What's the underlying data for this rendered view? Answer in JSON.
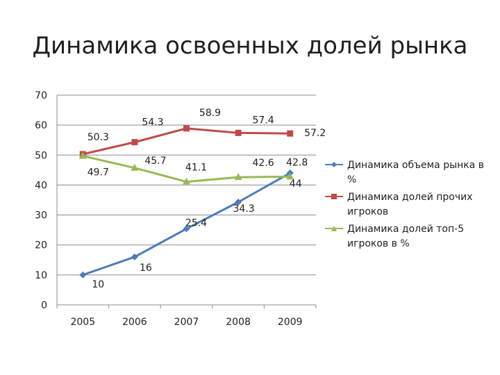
{
  "chart_data": {
    "type": "line",
    "title": "Динамика освоенных долей рынка",
    "categories": [
      "2005",
      "2006",
      "2007",
      "2008",
      "2009"
    ],
    "ylim": [
      0,
      70
    ],
    "yticks": [
      0,
      10,
      20,
      30,
      40,
      50,
      60,
      70
    ],
    "grid": true,
    "legend_position": "right",
    "series": [
      {
        "name": "Динамика объема рынка в %",
        "values": [
          10,
          16,
          25.4,
          34.3,
          44
        ],
        "labels": [
          "10",
          "16",
          "25.4",
          "34.3",
          "44"
        ],
        "color": "#4a7ebb",
        "marker": "diamond"
      },
      {
        "name": "Динамика долей прочих игроков",
        "values": [
          50.3,
          54.3,
          58.9,
          57.4,
          57.2
        ],
        "labels": [
          "50.3",
          "54.3",
          "58.9",
          "57.4",
          "57.2"
        ],
        "color": "#be4b48",
        "marker": "square"
      },
      {
        "name": "Динамика долей топ-5 игроков в %",
        "values": [
          49.7,
          45.7,
          41.1,
          42.6,
          42.8
        ],
        "labels": [
          "49.7",
          "45.7",
          "41.1",
          "42.6",
          "42.8"
        ],
        "color": "#98b954",
        "marker": "triangle"
      }
    ]
  }
}
